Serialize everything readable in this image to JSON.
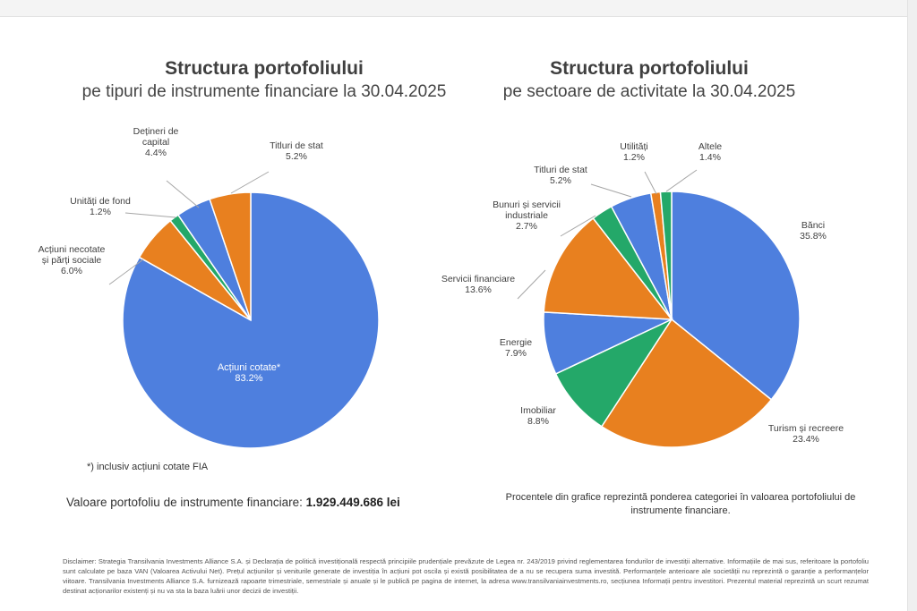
{
  "left": {
    "title": "Structura portofoliului",
    "subtitle": "pe tipuri de instrumente financiare la 30.04.2025"
  },
  "right": {
    "title": "Structura portofoliului",
    "subtitle": "pe sectoare de activitate la 30.04.2025"
  },
  "footnote": "*) inclusiv acțiuni cotate FIA",
  "portfolio_value": {
    "label": "Valoare portofoliu de instrumente financiare: ",
    "value": "1.929.449.686 lei"
  },
  "note_right": "Procentele din grafice reprezintă ponderea categoriei în valoarea portofoliului de instrumente financiare.",
  "disclaimer": "Disclaimer: Strategia Transilvania Investments Alliance S.A. și Declarația de politică investițională respectă principiile prudențiale prevăzute de Legea nr. 243/2019 privind reglementarea fondurilor de investiții alternative. Informațiile de mai sus, referitoare la portofoliu sunt calculate pe baza VAN (Valoarea Activului Net). Prețul acțiunilor și veniturile generate de investiția în acțiuni pot oscila și există posibilitatea de a nu se recupera suma investită. Performanțele anterioare ale societății nu reprezintă o garanție a performanțelor viitoare. Transilvania Investments Alliance S.A. furnizează rapoarte trimestriale, semestriale și anuale și le publică pe pagina de internet, la adresa www.transilvaniainvestments.ro, secțiunea Informații pentru investitori. Prezentul material reprezintă un scurt rezumat destinat acționarilor existenți și nu va sta la baza luării unor decizii de investiții.",
  "colors": {
    "blue": "#4e7fde",
    "orange": "#e8801f",
    "green": "#24a869"
  },
  "chart_data": [
    {
      "type": "pie",
      "title": "Structura portofoliului",
      "subtitle": "pe tipuri de instrumente financiare la 30.04.2025",
      "slices": [
        {
          "label": "Acțiuni cotate*",
          "value": 83.2,
          "text": "83.2%",
          "color": "#4e7fde"
        },
        {
          "label": "Acțiuni necotate și părți sociale",
          "value": 6.0,
          "text": "6.0%",
          "color": "#e8801f"
        },
        {
          "label": "Unități de fond",
          "value": 1.2,
          "text": "1.2%",
          "color": "#24a869"
        },
        {
          "label": "Dețineri de capital",
          "value": 4.4,
          "text": "4.4%",
          "color": "#4e7fde"
        },
        {
          "label": "Titluri de stat",
          "value": 5.2,
          "text": "5.2%",
          "color": "#e8801f"
        }
      ]
    },
    {
      "type": "pie",
      "title": "Structura portofoliului",
      "subtitle": "pe sectoare de activitate la 30.04.2025",
      "slices": [
        {
          "label": "Bănci",
          "value": 35.8,
          "text": "35.8%",
          "color": "#4e7fde"
        },
        {
          "label": "Turism și recreere",
          "value": 23.4,
          "text": "23.4%",
          "color": "#e8801f"
        },
        {
          "label": "Imobiliar",
          "value": 8.8,
          "text": "8.8%",
          "color": "#24a869"
        },
        {
          "label": "Energie",
          "value": 7.9,
          "text": "7.9%",
          "color": "#4e7fde"
        },
        {
          "label": "Servicii financiare",
          "value": 13.6,
          "text": "13.6%",
          "color": "#e8801f"
        },
        {
          "label": "Bunuri și servicii industriale",
          "value": 2.7,
          "text": "2.7%",
          "color": "#24a869"
        },
        {
          "label": "Titluri de stat",
          "value": 5.2,
          "text": "5.2%",
          "color": "#4e7fde"
        },
        {
          "label": "Utilități",
          "value": 1.2,
          "text": "1.2%",
          "color": "#e8801f"
        },
        {
          "label": "Altele",
          "value": 1.4,
          "text": "1.4%",
          "color": "#24a869"
        }
      ]
    }
  ]
}
